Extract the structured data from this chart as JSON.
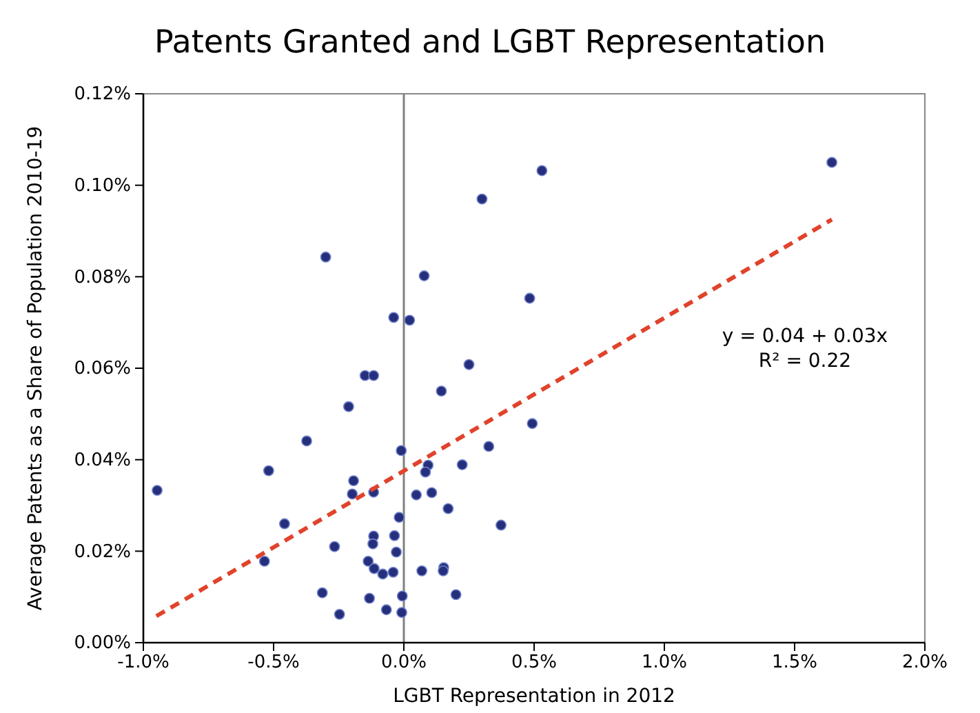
{
  "chart_data": {
    "type": "scatter",
    "title": "Patents Granted and LGBT Representation",
    "xlabel": "LGBT Representation in 2012",
    "ylabel": "Average Patents as a Share of Population 2010-19",
    "xlim": [
      -1.0,
      2.0
    ],
    "xticks": [
      {
        "value": -1.0,
        "label": "-1.0%"
      },
      {
        "value": -0.5,
        "label": "-0.5%"
      },
      {
        "value": 0,
        "label": "0.0%"
      },
      {
        "value": 0.5,
        "label": "0.5%"
      },
      {
        "value": 1.0,
        "label": "1.0%"
      },
      {
        "value": 1.5,
        "label": "1.5%"
      },
      {
        "value": 2.0,
        "label": "2.0%"
      }
    ],
    "ylim": [
      0,
      0.12
    ],
    "yticks": [
      {
        "value": 0,
        "label": "0.00%"
      },
      {
        "value": 0.02,
        "label": "0.02%"
      },
      {
        "value": 0.04,
        "label": "0.04%"
      },
      {
        "value": 0.06,
        "label": "0.06%"
      },
      {
        "value": 0.08,
        "label": "0.08%"
      },
      {
        "value": 0.1,
        "label": "0.10%"
      },
      {
        "value": 0.12,
        "label": "0.12%"
      }
    ],
    "grid": false,
    "marker": "circle",
    "ref_lines": [
      {
        "axis": "x",
        "value": 0,
        "color": "#808080"
      }
    ],
    "annotations": [
      "y = 0.04 + 0.03x",
      "R² = 0.22"
    ],
    "series": [
      {
        "type": "scatter",
        "color": "#252f7c",
        "x": [
          -0.3,
          0.3,
          0.078,
          -0.039,
          0.022,
          0.483,
          0.25,
          -0.149,
          -0.116,
          1.643,
          0.53,
          0.144,
          0.493,
          0.326,
          0.224,
          -0.01,
          0.093,
          0.083,
          0.048,
          0.107,
          0.17,
          0.373,
          -0.018,
          -0.036,
          -0.029,
          -0.041,
          0.069,
          0.153,
          0.151,
          0.2,
          -0.006,
          -0.067,
          -0.008,
          -0.947,
          -0.519,
          -0.373,
          -0.212,
          -0.458,
          -0.535,
          -0.266,
          -0.313,
          -0.247,
          -0.193,
          -0.198,
          -0.116,
          -0.116,
          -0.119,
          -0.137,
          -0.114,
          -0.081,
          -0.132
        ],
        "values": [
          0.0843,
          0.097,
          0.0802,
          0.0711,
          0.0705,
          0.0753,
          0.0608,
          0.0584,
          0.0584,
          0.105,
          0.1032,
          0.055,
          0.0479,
          0.0429,
          0.0389,
          0.042,
          0.0388,
          0.0373,
          0.0323,
          0.0328,
          0.0293,
          0.0257,
          0.0274,
          0.0234,
          0.0198,
          0.0154,
          0.0157,
          0.0164,
          0.0157,
          0.0105,
          0.0102,
          0.0072,
          0.0066,
          0.0333,
          0.0376,
          0.0441,
          0.0516,
          0.026,
          0.0178,
          0.021,
          0.0109,
          0.0062,
          0.0354,
          0.0325,
          0.0329,
          0.0233,
          0.0216,
          0.0178,
          0.0162,
          0.015,
          0.0097
        ]
      },
      {
        "type": "line",
        "color": "#e0432b",
        "line_style": "dashed",
        "marker": "none",
        "x": [
          -0.95,
          1.643
        ],
        "values": [
          0.0058,
          0.0925
        ]
      }
    ]
  }
}
